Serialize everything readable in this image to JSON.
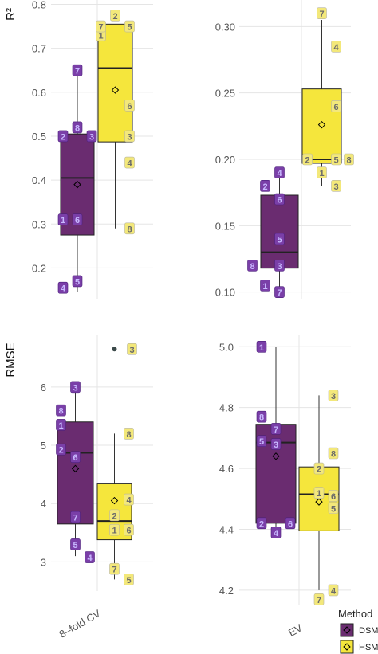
{
  "chart_data": [
    {
      "type": "box",
      "panel": "R2 / 8-fold CV",
      "ylabel": "R²",
      "ylim": [
        0.13,
        0.81
      ],
      "yticks": [
        0.2,
        0.3,
        0.4,
        0.5,
        0.6,
        0.7,
        0.8
      ],
      "series": [
        {
          "name": "DSM",
          "box": {
            "q1": 0.275,
            "median": 0.405,
            "q3": 0.505,
            "whisker_low": 0.145,
            "whisker_high": 0.65,
            "mean": 0.39
          },
          "points": [
            {
              "label": "1",
              "y": 0.31,
              "side": "l"
            },
            {
              "label": "2",
              "y": 0.5,
              "side": "l"
            },
            {
              "label": "3",
              "y": 0.5,
              "side": "r"
            },
            {
              "label": "4",
              "y": 0.155,
              "side": "l"
            },
            {
              "label": "5",
              "y": 0.17,
              "side": "c"
            },
            {
              "label": "6",
              "y": 0.31,
              "side": "c"
            },
            {
              "label": "7",
              "y": 0.65,
              "side": "c"
            },
            {
              "label": "8",
              "y": 0.52,
              "side": "c"
            }
          ]
        },
        {
          "name": "HSM",
          "box": {
            "q1": 0.487,
            "median": 0.655,
            "q3": 0.755,
            "whisker_low": 0.29,
            "whisker_high": 0.755,
            "mean": 0.605
          },
          "points": [
            {
              "label": "1",
              "y": 0.73,
              "side": "l"
            },
            {
              "label": "2",
              "y": 0.775,
              "side": "c"
            },
            {
              "label": "3",
              "y": 0.5,
              "side": "r"
            },
            {
              "label": "4",
              "y": 0.44,
              "side": "r"
            },
            {
              "label": "5",
              "y": 0.75,
              "side": "r"
            },
            {
              "label": "6",
              "y": 0.57,
              "side": "r"
            },
            {
              "label": "7",
              "y": 0.75,
              "side": "l"
            },
            {
              "label": "8",
              "y": 0.29,
              "side": "r"
            }
          ]
        }
      ]
    },
    {
      "type": "box",
      "panel": "R2 / EV",
      "ylabel": "",
      "ylim": [
        0.095,
        0.32
      ],
      "yticks": [
        0.1,
        0.15,
        0.2,
        0.25,
        0.3
      ],
      "series": [
        {
          "name": "DSM",
          "box": {
            "q1": 0.118,
            "median": 0.13,
            "q3": 0.173,
            "whisker_low": 0.1,
            "whisker_high": 0.19,
            "mean": null
          },
          "points": [
            {
              "label": "1",
              "y": 0.105,
              "side": "l"
            },
            {
              "label": "2",
              "y": 0.18,
              "side": "l"
            },
            {
              "label": "3",
              "y": 0.12,
              "side": "c"
            },
            {
              "label": "4",
              "y": 0.19,
              "side": "c"
            },
            {
              "label": "5",
              "y": 0.14,
              "side": "c"
            },
            {
              "label": "6",
              "y": 0.17,
              "side": "c"
            },
            {
              "label": "7",
              "y": 0.1,
              "side": "c"
            },
            {
              "label": "8",
              "y": 0.12,
              "side": "ll"
            }
          ]
        },
        {
          "name": "HSM",
          "box": {
            "q1": 0.197,
            "median": 0.2,
            "q3": 0.253,
            "whisker_low": 0.18,
            "whisker_high": 0.305,
            "mean": 0.226
          },
          "points": [
            {
              "label": "1",
              "y": 0.19,
              "side": "c"
            },
            {
              "label": "2",
              "y": 0.2,
              "side": "l"
            },
            {
              "label": "3",
              "y": 0.18,
              "side": "r"
            },
            {
              "label": "4",
              "y": 0.285,
              "side": "r"
            },
            {
              "label": "5",
              "y": 0.2,
              "side": "r"
            },
            {
              "label": "6",
              "y": 0.24,
              "side": "r"
            },
            {
              "label": "7",
              "y": 0.31,
              "side": "c"
            },
            {
              "label": "8",
              "y": 0.2,
              "side": "rr"
            }
          ]
        }
      ]
    },
    {
      "type": "box",
      "panel": "RMSE / 8-fold CV",
      "ylabel": "RMSE",
      "ylim": [
        2.5,
        6.9
      ],
      "yticks": [
        3,
        4,
        5,
        6
      ],
      "xlabel": "8–fold CV",
      "series": [
        {
          "name": "DSM",
          "box": {
            "q1": 3.65,
            "median": 4.87,
            "q3": 5.4,
            "whisker_low": 3.1,
            "whisker_high": 6.0,
            "mean": 4.6
          },
          "points": [
            {
              "label": "1",
              "y": 5.35,
              "side": "l"
            },
            {
              "label": "2",
              "y": 4.93,
              "side": "l"
            },
            {
              "label": "3",
              "y": 6.0,
              "side": "c"
            },
            {
              "label": "4",
              "y": 3.08,
              "side": "r"
            },
            {
              "label": "5",
              "y": 3.3,
              "side": "c"
            },
            {
              "label": "6",
              "y": 4.8,
              "side": "c"
            },
            {
              "label": "7",
              "y": 3.77,
              "side": "c"
            },
            {
              "label": "8",
              "y": 5.6,
              "side": "l"
            }
          ]
        },
        {
          "name": "HSM",
          "box": {
            "q1": 3.38,
            "median": 3.7,
            "q3": 4.35,
            "whisker_low": 2.7,
            "whisker_high": 5.2,
            "mean": 4.05
          },
          "points": [
            {
              "label": "1",
              "y": 3.55,
              "side": "c"
            },
            {
              "label": "2",
              "y": 3.8,
              "side": "c"
            },
            {
              "label": "3",
              "y": 6.65,
              "side": "r"
            },
            {
              "label": "4",
              "y": 4.07,
              "side": "r"
            },
            {
              "label": "5",
              "y": 2.7,
              "side": "r"
            },
            {
              "label": "6",
              "y": 3.55,
              "side": "r"
            },
            {
              "label": "7",
              "y": 2.88,
              "side": "c"
            },
            {
              "label": "8",
              "y": 5.2,
              "side": "r"
            }
          ],
          "outliers": [
            6.65
          ]
        }
      ]
    },
    {
      "type": "box",
      "panel": "RMSE / EV",
      "ylabel": "",
      "ylim": [
        4.15,
        5.04
      ],
      "yticks": [
        4.2,
        4.4,
        4.6,
        4.8,
        5.0
      ],
      "xlabel": "EV",
      "series": [
        {
          "name": "DSM",
          "box": {
            "q1": 4.42,
            "median": 4.685,
            "q3": 4.745,
            "whisker_low": 4.4,
            "whisker_high": 5.0,
            "mean": 4.64
          },
          "points": [
            {
              "label": "1",
              "y": 5.0,
              "side": "l"
            },
            {
              "label": "2",
              "y": 4.42,
              "side": "l"
            },
            {
              "label": "3",
              "y": 4.68,
              "side": "c"
            },
            {
              "label": "4",
              "y": 4.39,
              "side": "c"
            },
            {
              "label": "5",
              "y": 4.69,
              "side": "l"
            },
            {
              "label": "6",
              "y": 4.42,
              "side": "r"
            },
            {
              "label": "7",
              "y": 4.73,
              "side": "c"
            },
            {
              "label": "8",
              "y": 4.77,
              "side": "l"
            }
          ]
        },
        {
          "name": "HSM",
          "box": {
            "q1": 4.395,
            "median": 4.515,
            "q3": 4.605,
            "whisker_low": 4.2,
            "whisker_high": 4.84,
            "mean": 4.49
          },
          "points": [
            {
              "label": "1",
              "y": 4.52,
              "side": "c"
            },
            {
              "label": "2",
              "y": 4.6,
              "side": "c"
            },
            {
              "label": "3",
              "y": 4.84,
              "side": "r"
            },
            {
              "label": "4",
              "y": 4.2,
              "side": "r"
            },
            {
              "label": "5",
              "y": 4.47,
              "side": "r"
            },
            {
              "label": "6",
              "y": 4.51,
              "side": "r"
            },
            {
              "label": "7",
              "y": 4.17,
              "side": "c"
            },
            {
              "label": "8",
              "y": 4.65,
              "side": "r"
            }
          ]
        }
      ]
    }
  ],
  "legend": {
    "title": "Method",
    "entries": [
      {
        "name": "DSM",
        "color": "#6a2c70"
      },
      {
        "name": "HSM",
        "color": "#f5e63c"
      }
    ]
  },
  "colors": {
    "DSM_fill": "#6a2c70",
    "HSM_fill": "#f5e63c",
    "DSM_label_bg": "#7a3fa8",
    "HSM_label_bg": "#f3e87a",
    "grid": "#e5e5e5"
  }
}
